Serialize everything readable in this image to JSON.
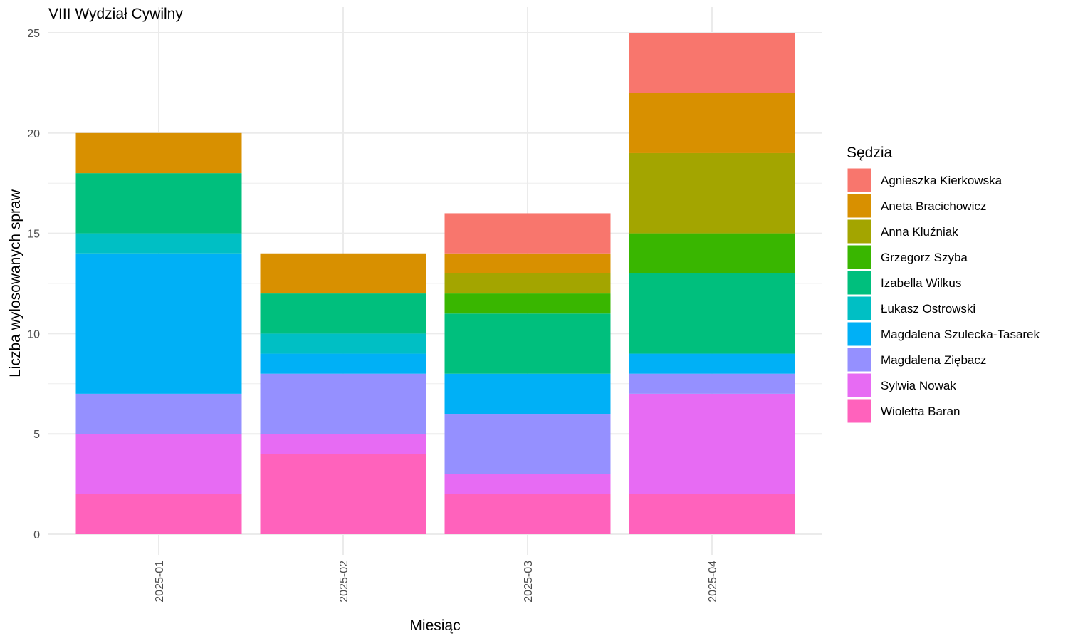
{
  "chart_data": {
    "type": "bar",
    "stacked": true,
    "title": "VIII Wydział Cywilny",
    "xlabel": "Miesiąc",
    "ylabel": "Liczba wylosowanych spraw",
    "categories": [
      "2025-01",
      "2025-02",
      "2025-03",
      "2025-04"
    ],
    "ylim": [
      0,
      25
    ],
    "yticks": [
      0,
      5,
      10,
      15,
      20,
      25
    ],
    "grid": true,
    "legend": {
      "title": "Sędzia",
      "position": "right"
    },
    "series": [
      {
        "name": "Agnieszka Kierkowska",
        "color": "#F8766D",
        "values": [
          0,
          0,
          2,
          3
        ]
      },
      {
        "name": "Aneta Bracichowicz",
        "color": "#D89000",
        "values": [
          2,
          2,
          1,
          3
        ]
      },
      {
        "name": "Anna Kluźniak",
        "color": "#A3A500",
        "values": [
          0,
          0,
          1,
          4
        ]
      },
      {
        "name": "Grzegorz Szyba",
        "color": "#39B600",
        "values": [
          0,
          0,
          1,
          2
        ]
      },
      {
        "name": "Izabella Wilkus",
        "color": "#00BF7D",
        "values": [
          3,
          2,
          3,
          4
        ]
      },
      {
        "name": "Łukasz Ostrowski",
        "color": "#00BFC4",
        "values": [
          1,
          1,
          0,
          0
        ]
      },
      {
        "name": "Magdalena Szulecka-Tasarek",
        "color": "#00B0F6",
        "values": [
          7,
          1,
          2,
          1
        ]
      },
      {
        "name": "Magdalena Ziębacz",
        "color": "#9590FF",
        "values": [
          2,
          3,
          3,
          1
        ]
      },
      {
        "name": "Sylwia Nowak",
        "color": "#E76BF3",
        "values": [
          3,
          1,
          1,
          5
        ]
      },
      {
        "name": "Wioletta Baran",
        "color": "#FF62BC",
        "values": [
          2,
          4,
          2,
          2
        ]
      }
    ]
  }
}
